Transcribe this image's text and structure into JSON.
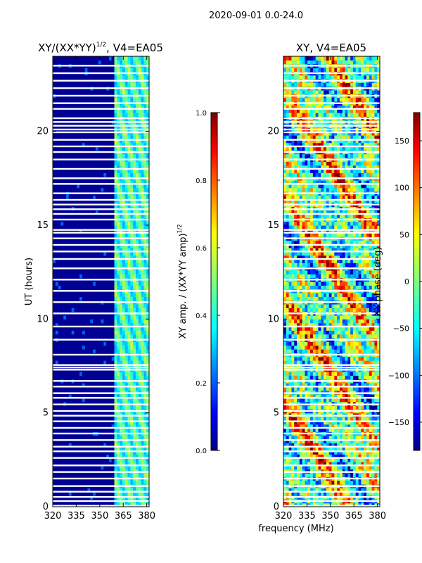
{
  "suptitle": "2020-09-01 0.0-24.0",
  "xlabel_shared": "frequency (MHz)",
  "colors": {
    "jet": [
      "#00007f",
      "#0000ff",
      "#007fff",
      "#00ffff",
      "#7fff7f",
      "#ffff00",
      "#ff7f00",
      "#ff0000",
      "#7f0000"
    ],
    "gap": "#ffffff",
    "axis": "#000000"
  },
  "chart_data": [
    {
      "type": "heatmap",
      "title": "XY/(XX*YY)",
      "title_exp": "1/2",
      "title_suffix": ", V4=EA05",
      "ylabel": "UT (hours)",
      "xlim": [
        320,
        381.5
      ],
      "ylim": [
        0,
        24
      ],
      "xticks": [
        "320",
        "335",
        "350",
        "365",
        "380"
      ],
      "xtick_values": [
        320,
        335,
        350,
        365,
        380
      ],
      "yticks": [
        "0",
        "5",
        "10",
        "15",
        "20"
      ],
      "ytick_values": [
        0,
        5,
        10,
        15,
        20
      ],
      "colorbar": {
        "label_prefix": "XY amp. / (XX*YY amp)",
        "label_exp": "1/2",
        "range": [
          0.0,
          1.0
        ],
        "ticks": [
          "0.0",
          "0.2",
          "0.4",
          "0.6",
          "0.8",
          "1.0"
        ],
        "tick_values": [
          0.0,
          0.2,
          0.4,
          0.6,
          0.8,
          1.0
        ]
      },
      "description_values": {
        "low_band_mhz": [
          320,
          360
        ],
        "low_band_value": 0.02,
        "high_band_mhz": [
          361,
          381.5
        ],
        "high_band_value_range": [
          0.3,
          0.6
        ]
      }
    },
    {
      "type": "heatmap",
      "title": "XY, V4=EA05",
      "xlim": [
        320,
        381.5
      ],
      "ylim": [
        0,
        24
      ],
      "xticks": [
        "320",
        "335",
        "350",
        "365",
        "380"
      ],
      "xtick_values": [
        320,
        335,
        350,
        365,
        380
      ],
      "yticks": [
        "0",
        "5",
        "10",
        "15",
        "20"
      ],
      "ytick_values": [
        0,
        5,
        10,
        15,
        20
      ],
      "colorbar": {
        "label": "XY phase (deg)",
        "range": [
          -180,
          180
        ],
        "ticks": [
          "150",
          "100",
          "50",
          "0",
          "−50",
          "−100",
          "−150"
        ],
        "tick_values": [
          150,
          100,
          50,
          0,
          -50,
          -100,
          -150
        ]
      }
    }
  ],
  "gap_hours": [
    0.05,
    0.3,
    0.52,
    0.8,
    1.1,
    1.5,
    1.85,
    2.2,
    2.6,
    2.95,
    3.2,
    3.55,
    3.9,
    4.2,
    4.55,
    4.85,
    5.1,
    5.45,
    5.8,
    6.05,
    6.4,
    6.7,
    7.3,
    7.42,
    7.55,
    8.1,
    8.9,
    9.6,
    10.3,
    10.9,
    11.5,
    12.1,
    12.7,
    13.2,
    13.6,
    13.95,
    14.3,
    14.6,
    14.75,
    15.3,
    15.6,
    15.85,
    16.1,
    16.35,
    16.7,
    17.2,
    17.5,
    18.0,
    18.5,
    18.9,
    19.2,
    19.55,
    19.95,
    20.1,
    20.3,
    20.5,
    20.7,
    21.2,
    21.5,
    21.9,
    22.3,
    22.7,
    23.1,
    23.5
  ]
}
